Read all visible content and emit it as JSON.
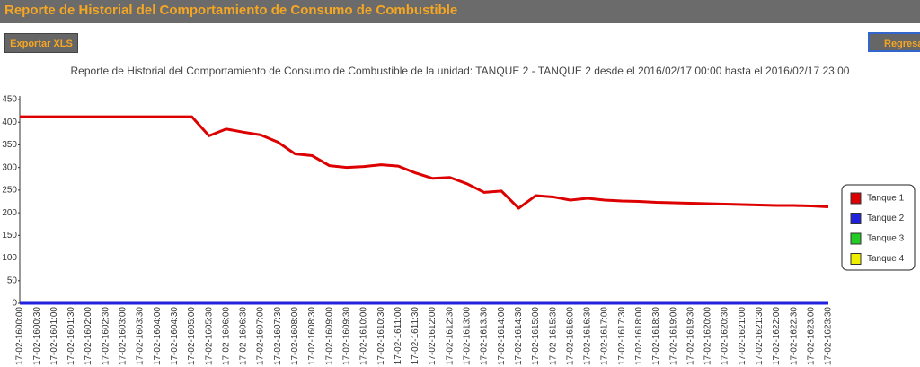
{
  "header": {
    "title": "Reporte de Historial del Comportamiento de Consumo de Combustible"
  },
  "buttons": [
    "Exportar XLS",
    "Regresar"
  ],
  "chart_data": {
    "type": "line",
    "title": "Reporte de Historial del Comportamiento de Consumo de Combustible de la unidad: TANQUE 2 - TANQUE 2 desde el 2016/02/17 00:00 hasta el 2016/02/17 23:00",
    "categories": [
      "17-02-1600:00",
      "17-02-1600:30",
      "17-02-1601:00",
      "17-02-1601:30",
      "17-02-1602:00",
      "17-02-1602:30",
      "17-02-1603:00",
      "17-02-1603:30",
      "17-02-1604:00",
      "17-02-1604:30",
      "17-02-1605:00",
      "17-02-1605:30",
      "17-02-1606:00",
      "17-02-1606:30",
      "17-02-1607:00",
      "17-02-1607:30",
      "17-02-1608:00",
      "17-02-1608:30",
      "17-02-1609:00",
      "17-02-1609:30",
      "17-02-1610:00",
      "17-02-1610:30",
      "17-02-1611:00",
      "17-02-1611:30",
      "17-02-1612:00",
      "17-02-1612:30",
      "17-02-1613:00",
      "17-02-1613:30",
      "17-02-1614:00",
      "17-02-1614:30",
      "17-02-1615:00",
      "17-02-1615:30",
      "17-02-1616:00",
      "17-02-1616:30",
      "17-02-1617:00",
      "17-02-1617:30",
      "17-02-1618:00",
      "17-02-1618:30",
      "17-02-1619:00",
      "17-02-1619:30",
      "17-02-1620:00",
      "17-02-1620:30",
      "17-02-1621:00",
      "17-02-1621:30",
      "17-02-1622:00",
      "17-02-1622:30",
      "17-02-1623:00",
      "17-02-1623:30"
    ],
    "series": [
      {
        "name": "Tanque 1",
        "color": "#dd0000",
        "values": [
          412,
          412,
          412,
          412,
          412,
          412,
          412,
          412,
          412,
          412,
          412,
          370,
          385,
          378,
          372,
          356,
          330,
          326,
          304,
          300,
          302,
          306,
          303,
          288,
          276,
          278,
          264,
          245,
          248,
          210,
          238,
          235,
          228,
          232,
          228,
          226,
          225,
          223,
          222,
          221,
          220,
          219,
          218,
          217,
          216,
          216,
          215,
          213
        ]
      },
      {
        "name": "Tanque 2",
        "color": "#2020dd",
        "values": [
          0,
          0,
          0,
          0,
          0,
          0,
          0,
          0,
          0,
          0,
          0,
          0,
          0,
          0,
          0,
          0,
          0,
          0,
          0,
          0,
          0,
          0,
          0,
          0,
          0,
          0,
          0,
          0,
          0,
          0,
          0,
          0,
          0,
          0,
          0,
          0,
          0,
          0,
          0,
          0,
          0,
          0,
          0,
          0,
          0,
          0,
          0,
          0
        ]
      },
      {
        "name": "Tanque 3",
        "color": "#22cc22",
        "values": [
          0,
          0,
          0,
          0,
          0,
          0,
          0,
          0,
          0,
          0,
          0,
          0,
          0,
          0,
          0,
          0,
          0,
          0,
          0,
          0,
          0,
          0,
          0,
          0,
          0,
          0,
          0,
          0,
          0,
          0,
          0,
          0,
          0,
          0,
          0,
          0,
          0,
          0,
          0,
          0,
          0,
          0,
          0,
          0,
          0,
          0,
          0,
          0
        ]
      },
      {
        "name": "Tanque 4",
        "color": "#eeee00",
        "values": [
          0,
          0,
          0,
          0,
          0,
          0,
          0,
          0,
          0,
          0,
          0,
          0,
          0,
          0,
          0,
          0,
          0,
          0,
          0,
          0,
          0,
          0,
          0,
          0,
          0,
          0,
          0,
          0,
          0,
          0,
          0,
          0,
          0,
          0,
          0,
          0,
          0,
          0,
          0,
          0,
          0,
          0,
          0,
          0,
          0,
          0,
          0,
          0
        ]
      }
    ],
    "ylim": [
      0,
      450
    ],
    "yticks": [
      0,
      50,
      100,
      150,
      200,
      250,
      300,
      350,
      400,
      450
    ],
    "grid": false,
    "legend": "right"
  }
}
